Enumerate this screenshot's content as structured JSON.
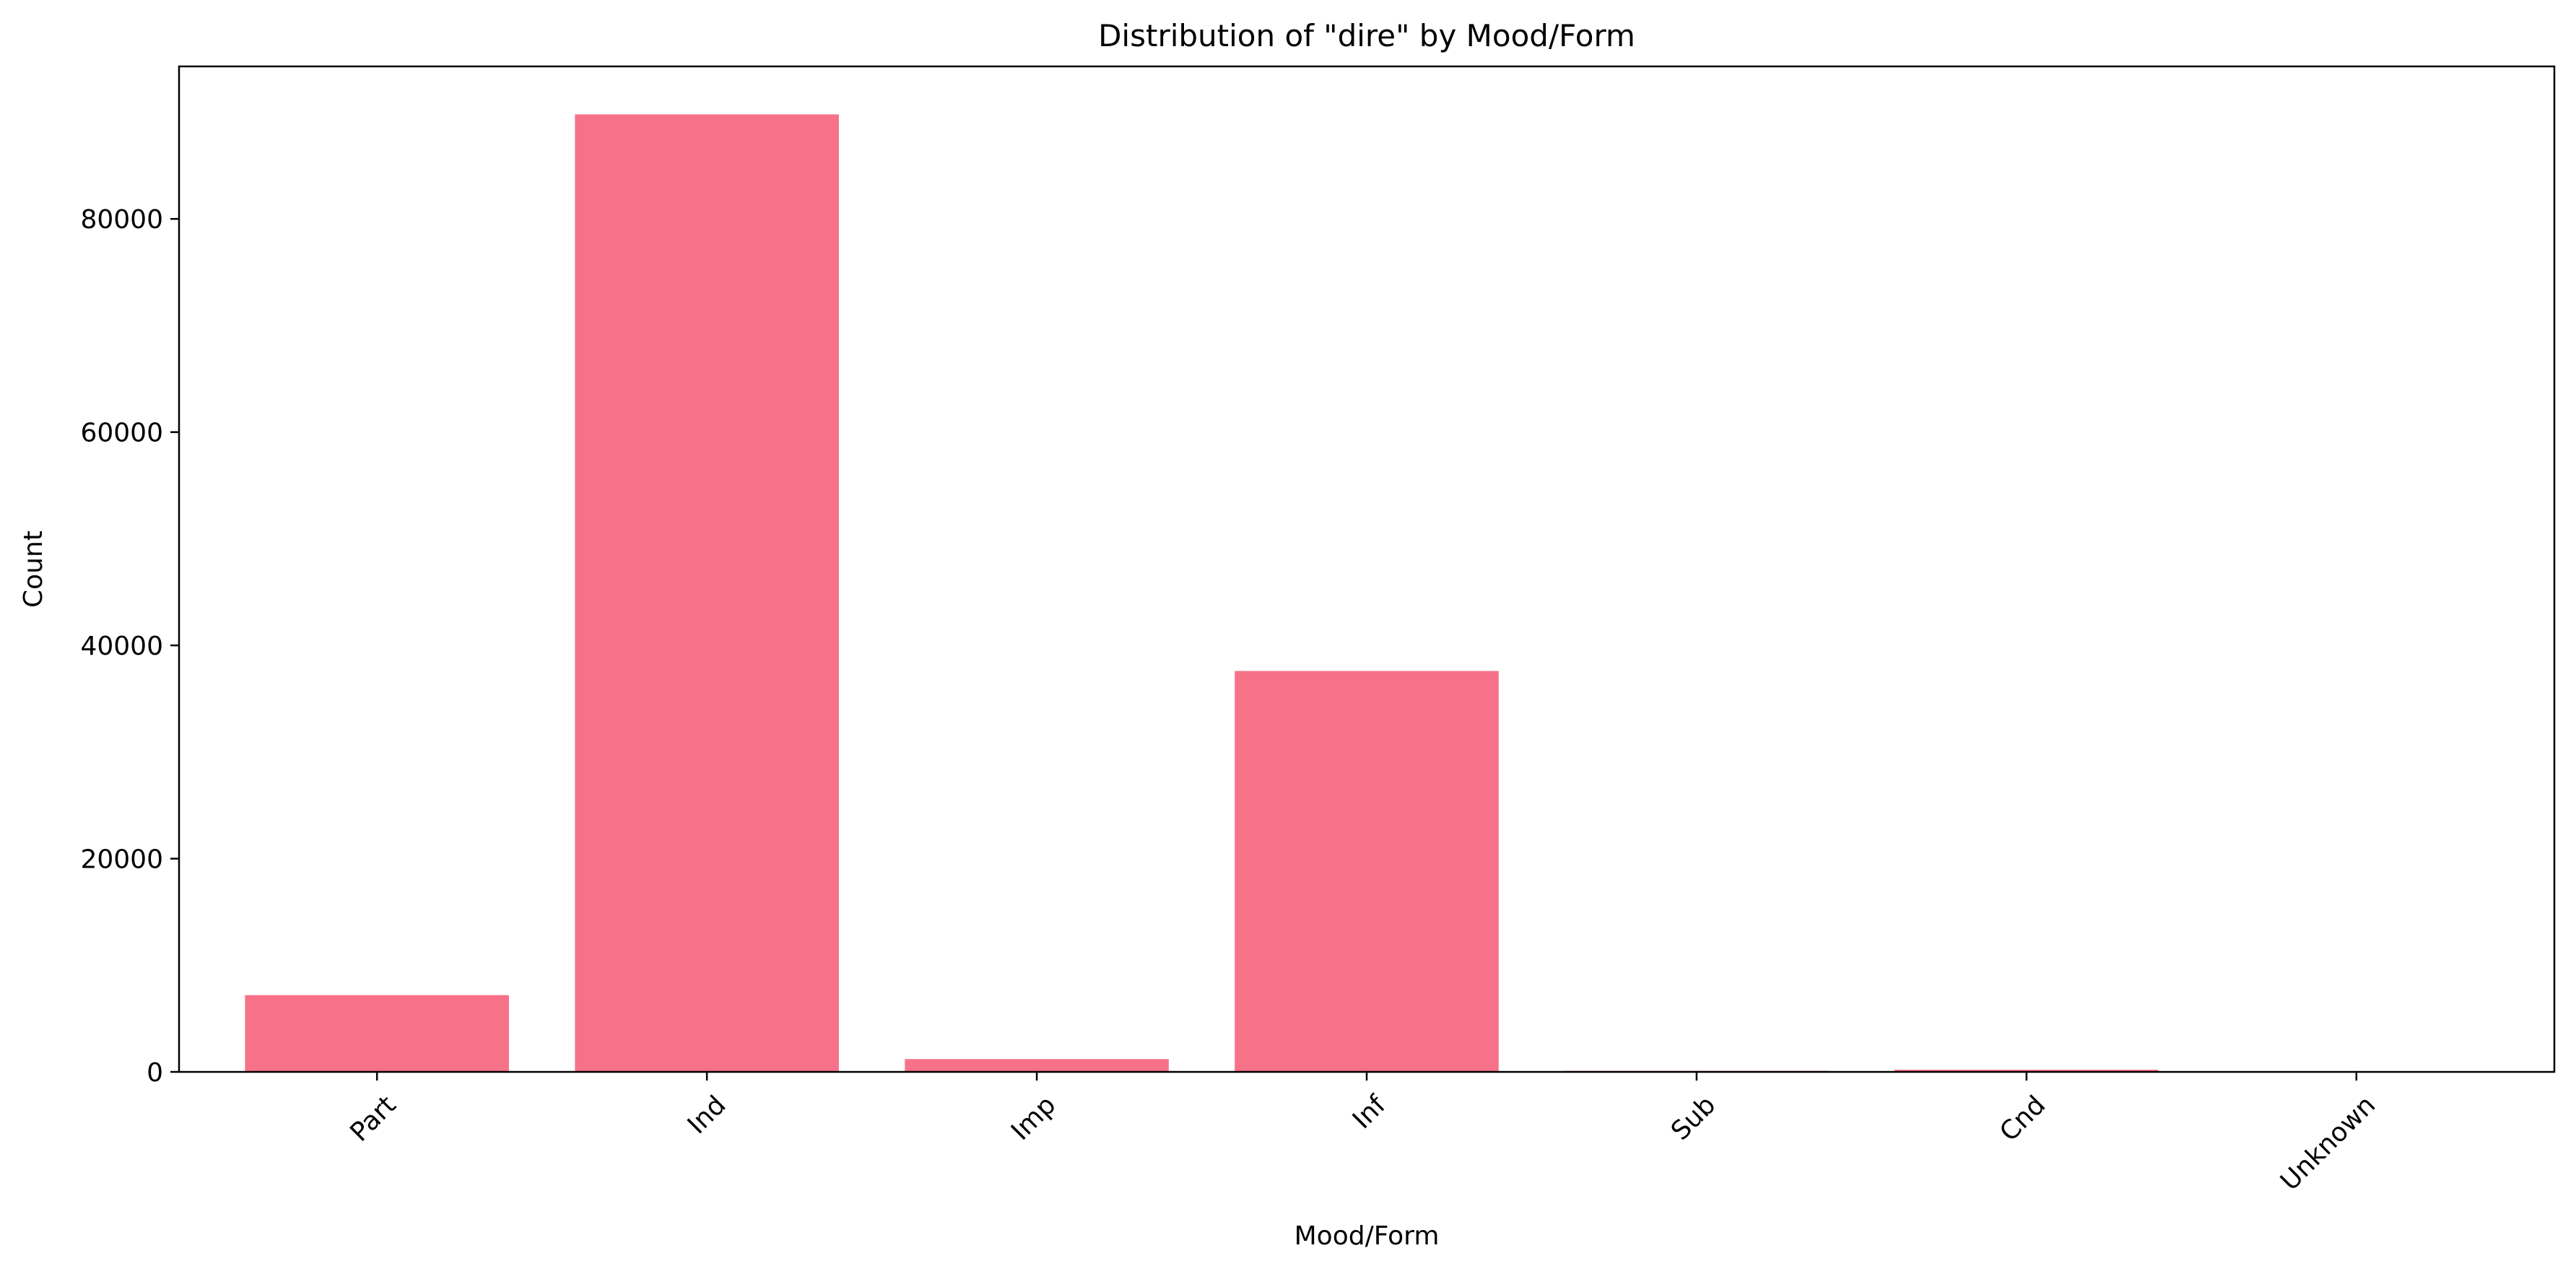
{
  "chart_data": {
    "type": "bar",
    "title": "Distribution of \"dire\" by Mood/Form",
    "xlabel": "Mood/Form",
    "ylabel": "Count",
    "categories": [
      "Part",
      "Ind",
      "Imp",
      "Inf",
      "Sub",
      "Cnd",
      "Unknown"
    ],
    "values": [
      7200,
      89800,
      1200,
      37600,
      100,
      200,
      0
    ],
    "ylim": [
      0,
      94300
    ],
    "yticks": [
      0,
      20000,
      40000,
      60000,
      80000
    ],
    "ytick_labels": [
      "0",
      "20000",
      "40000",
      "60000",
      "80000"
    ],
    "grid": false,
    "legend": "none",
    "bar_color": "#f77189",
    "axis_color": "#000000"
  }
}
